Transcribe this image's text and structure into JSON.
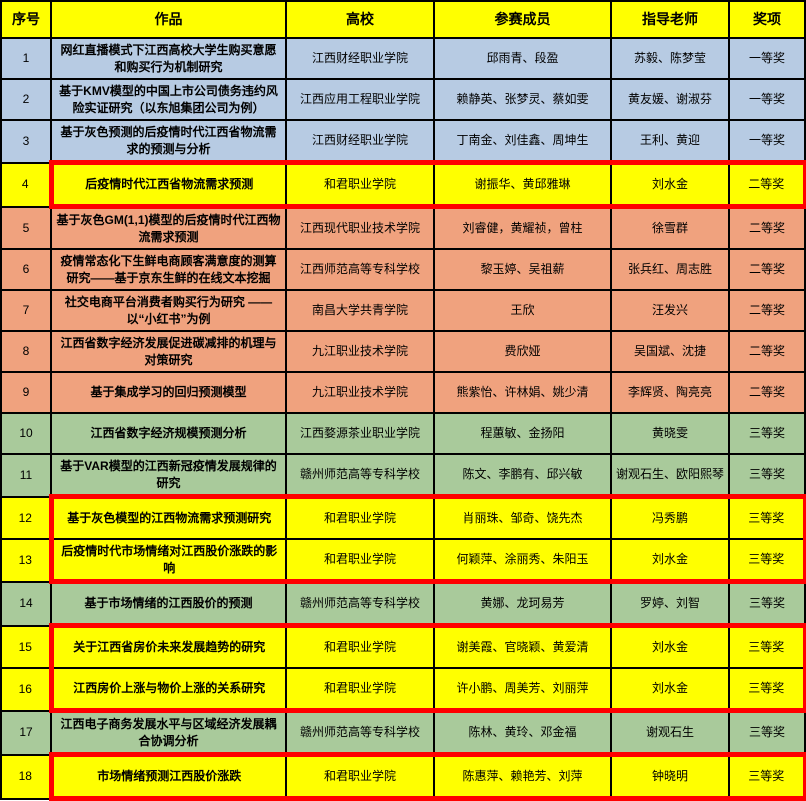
{
  "table": {
    "columns": [
      "序号",
      "作品",
      "高校",
      "参赛成员",
      "指导老师",
      "奖项"
    ],
    "colors": {
      "header_bg": "#FFFF00",
      "blue": "#B7CBE3",
      "orange": "#F0A27E",
      "green": "#A9CA9B",
      "highlight": "#FFFF00",
      "red_border": "#FF0000",
      "grid": "#000000"
    },
    "rows": [
      {
        "theme": "blue",
        "highlight": false,
        "cells": [
          "1",
          "网红直播模式下江西高校大学生购买意愿和购买行为机制研究",
          "江西财经职业学院",
          "邱雨青、段盈",
          "苏毅、陈梦莹",
          "一等奖"
        ]
      },
      {
        "theme": "blue",
        "highlight": false,
        "cells": [
          "2",
          "基于KMV模型的中国上市公司债务违约风险实证研究（以东旭集团公司为例）",
          "江西应用工程职业学院",
          "赖静英、张梦灵、蔡如雯",
          "黄友媛、谢淑芬",
          "一等奖"
        ]
      },
      {
        "theme": "blue",
        "highlight": false,
        "cells": [
          "3",
          "基于灰色预测的后疫情时代江西省物流需求的预测与分析",
          "江西财经职业学院",
          "丁南金、刘佳鑫、周坤生",
          "王利、黄迎",
          "一等奖"
        ]
      },
      {
        "theme": "orange",
        "highlight": true,
        "cells": [
          "4",
          "后疫情时代江西省物流需求预测",
          "和君职业学院",
          "谢振华、黄邱雅琳",
          "刘水金",
          "二等奖"
        ]
      },
      {
        "theme": "orange",
        "highlight": false,
        "cells": [
          "5",
          "基于灰色GM(1,1)模型的后疫情时代江西物流需求预测",
          "江西现代职业技术学院",
          "刘睿健，黄耀祯，曾柱",
          "徐雪群",
          "二等奖"
        ]
      },
      {
        "theme": "orange",
        "highlight": false,
        "cells": [
          "6",
          "疫情常态化下生鲜电商顾客满意度的测算研究——基于京东生鲜的在线文本挖掘",
          "江西师范高等专科学校",
          "黎玉婷、吴祖薪",
          "张兵红、周志胜",
          "二等奖"
        ]
      },
      {
        "theme": "orange",
        "highlight": false,
        "cells": [
          "7",
          "社交电商平台消费者购买行为研究 ——以“小红书”为例",
          "南昌大学共青学院",
          "王欣",
          "汪发兴",
          "二等奖"
        ]
      },
      {
        "theme": "orange",
        "highlight": false,
        "cells": [
          "8",
          "江西省数字经济发展促进碳减排的机理与对策研究",
          "九江职业技术学院",
          "费欣娅",
          "吴国斌、沈捷",
          "二等奖"
        ]
      },
      {
        "theme": "orange",
        "highlight": false,
        "cells": [
          "9",
          "基于集成学习的回归预测模型",
          "九江职业技术学院",
          "熊紫怡、许林娟、姚少清",
          "李辉贤、陶亮亮",
          "二等奖"
        ]
      },
      {
        "theme": "green",
        "highlight": false,
        "cells": [
          "10",
          "江西省数字经济规模预测分析",
          "江西婺源茶业职业学院",
          "程蕙敏、金扬阳",
          "黄晓雯",
          "三等奖"
        ]
      },
      {
        "theme": "green",
        "highlight": false,
        "cells": [
          "11",
          "基于VAR模型的江西新冠疫情发展规律的研究",
          "赣州师范高等专科学校",
          "陈文、李鹏有、邱兴敏",
          "谢观石生、欧阳熙琴",
          "三等奖"
        ]
      },
      {
        "theme": "green",
        "highlight": true,
        "cells": [
          "12",
          "基于灰色模型的江西物流需求预测研究",
          "和君职业学院",
          "肖丽珠、邹奇、饶先杰",
          "冯秀鹏",
          "三等奖"
        ]
      },
      {
        "theme": "green",
        "highlight": true,
        "cells": [
          "13",
          "后疫情时代市场情绪对江西股价涨跌的影响",
          "和君职业学院",
          "何颖萍、涂丽秀、朱阳玉",
          "刘水金",
          "三等奖"
        ]
      },
      {
        "theme": "green",
        "highlight": false,
        "cells": [
          "14",
          "基于市场情绪的江西股价的预测",
          "赣州师范高等专科学校",
          "黄娜、龙珂易芳",
          "罗婷、刘智",
          "三等奖"
        ]
      },
      {
        "theme": "green",
        "highlight": true,
        "cells": [
          "15",
          "关于江西省房价未来发展趋势的研究",
          "和君职业学院",
          "谢美霞、官晓颖、黄爱清",
          "刘水金",
          "三等奖"
        ]
      },
      {
        "theme": "green",
        "highlight": true,
        "cells": [
          "16",
          "江西房价上涨与物价上涨的关系研究",
          "和君职业学院",
          "许小鹏、周美芳、刘丽萍",
          "刘水金",
          "三等奖"
        ]
      },
      {
        "theme": "green",
        "highlight": false,
        "cells": [
          "17",
          "江西电子商务发展水平与区域经济发展耦合协调分析",
          "赣州师范高等专科学校",
          "陈林、黄玲、邓金福",
          "谢观石生",
          "三等奖"
        ]
      },
      {
        "theme": "green",
        "highlight": true,
        "cells": [
          "18",
          "市场情绪预测江西股价涨跌",
          "和君职业学院",
          "陈惠萍、赖艳芳、刘萍",
          "钟晓明",
          "三等奖"
        ]
      }
    ]
  }
}
